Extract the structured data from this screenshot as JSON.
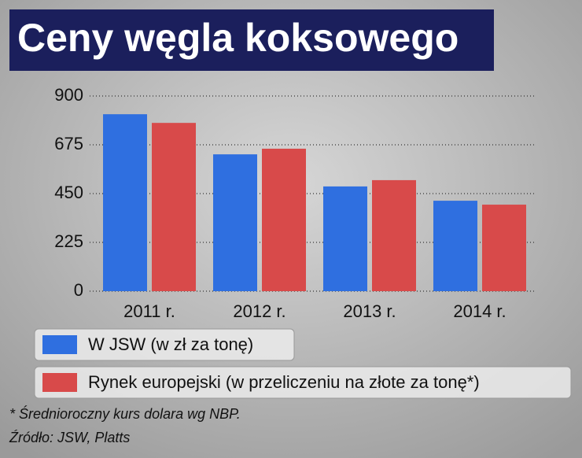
{
  "chart_data": {
    "type": "bar",
    "title": "Ceny węgla koksowego",
    "categories": [
      "2011 r.",
      "2012 r.",
      "2013 r.",
      "2014 r."
    ],
    "series": [
      {
        "name": "W JSW (w zł za tonę)",
        "color": "#2f6fe0",
        "values": [
          816,
          631,
          483,
          417
        ]
      },
      {
        "name": "Rynek europejski (w przeliczeniu na złote za tonę*)",
        "color": "#d84a4a",
        "values": [
          776,
          657,
          512,
          399
        ]
      }
    ],
    "ylim": [
      0,
      900
    ],
    "yticks": [
      0,
      225,
      450,
      675,
      900
    ],
    "grid": true,
    "footnote": "* Średnioroczny kurs dolara wg NBP.",
    "source": "Źródło: JSW, Platts"
  }
}
